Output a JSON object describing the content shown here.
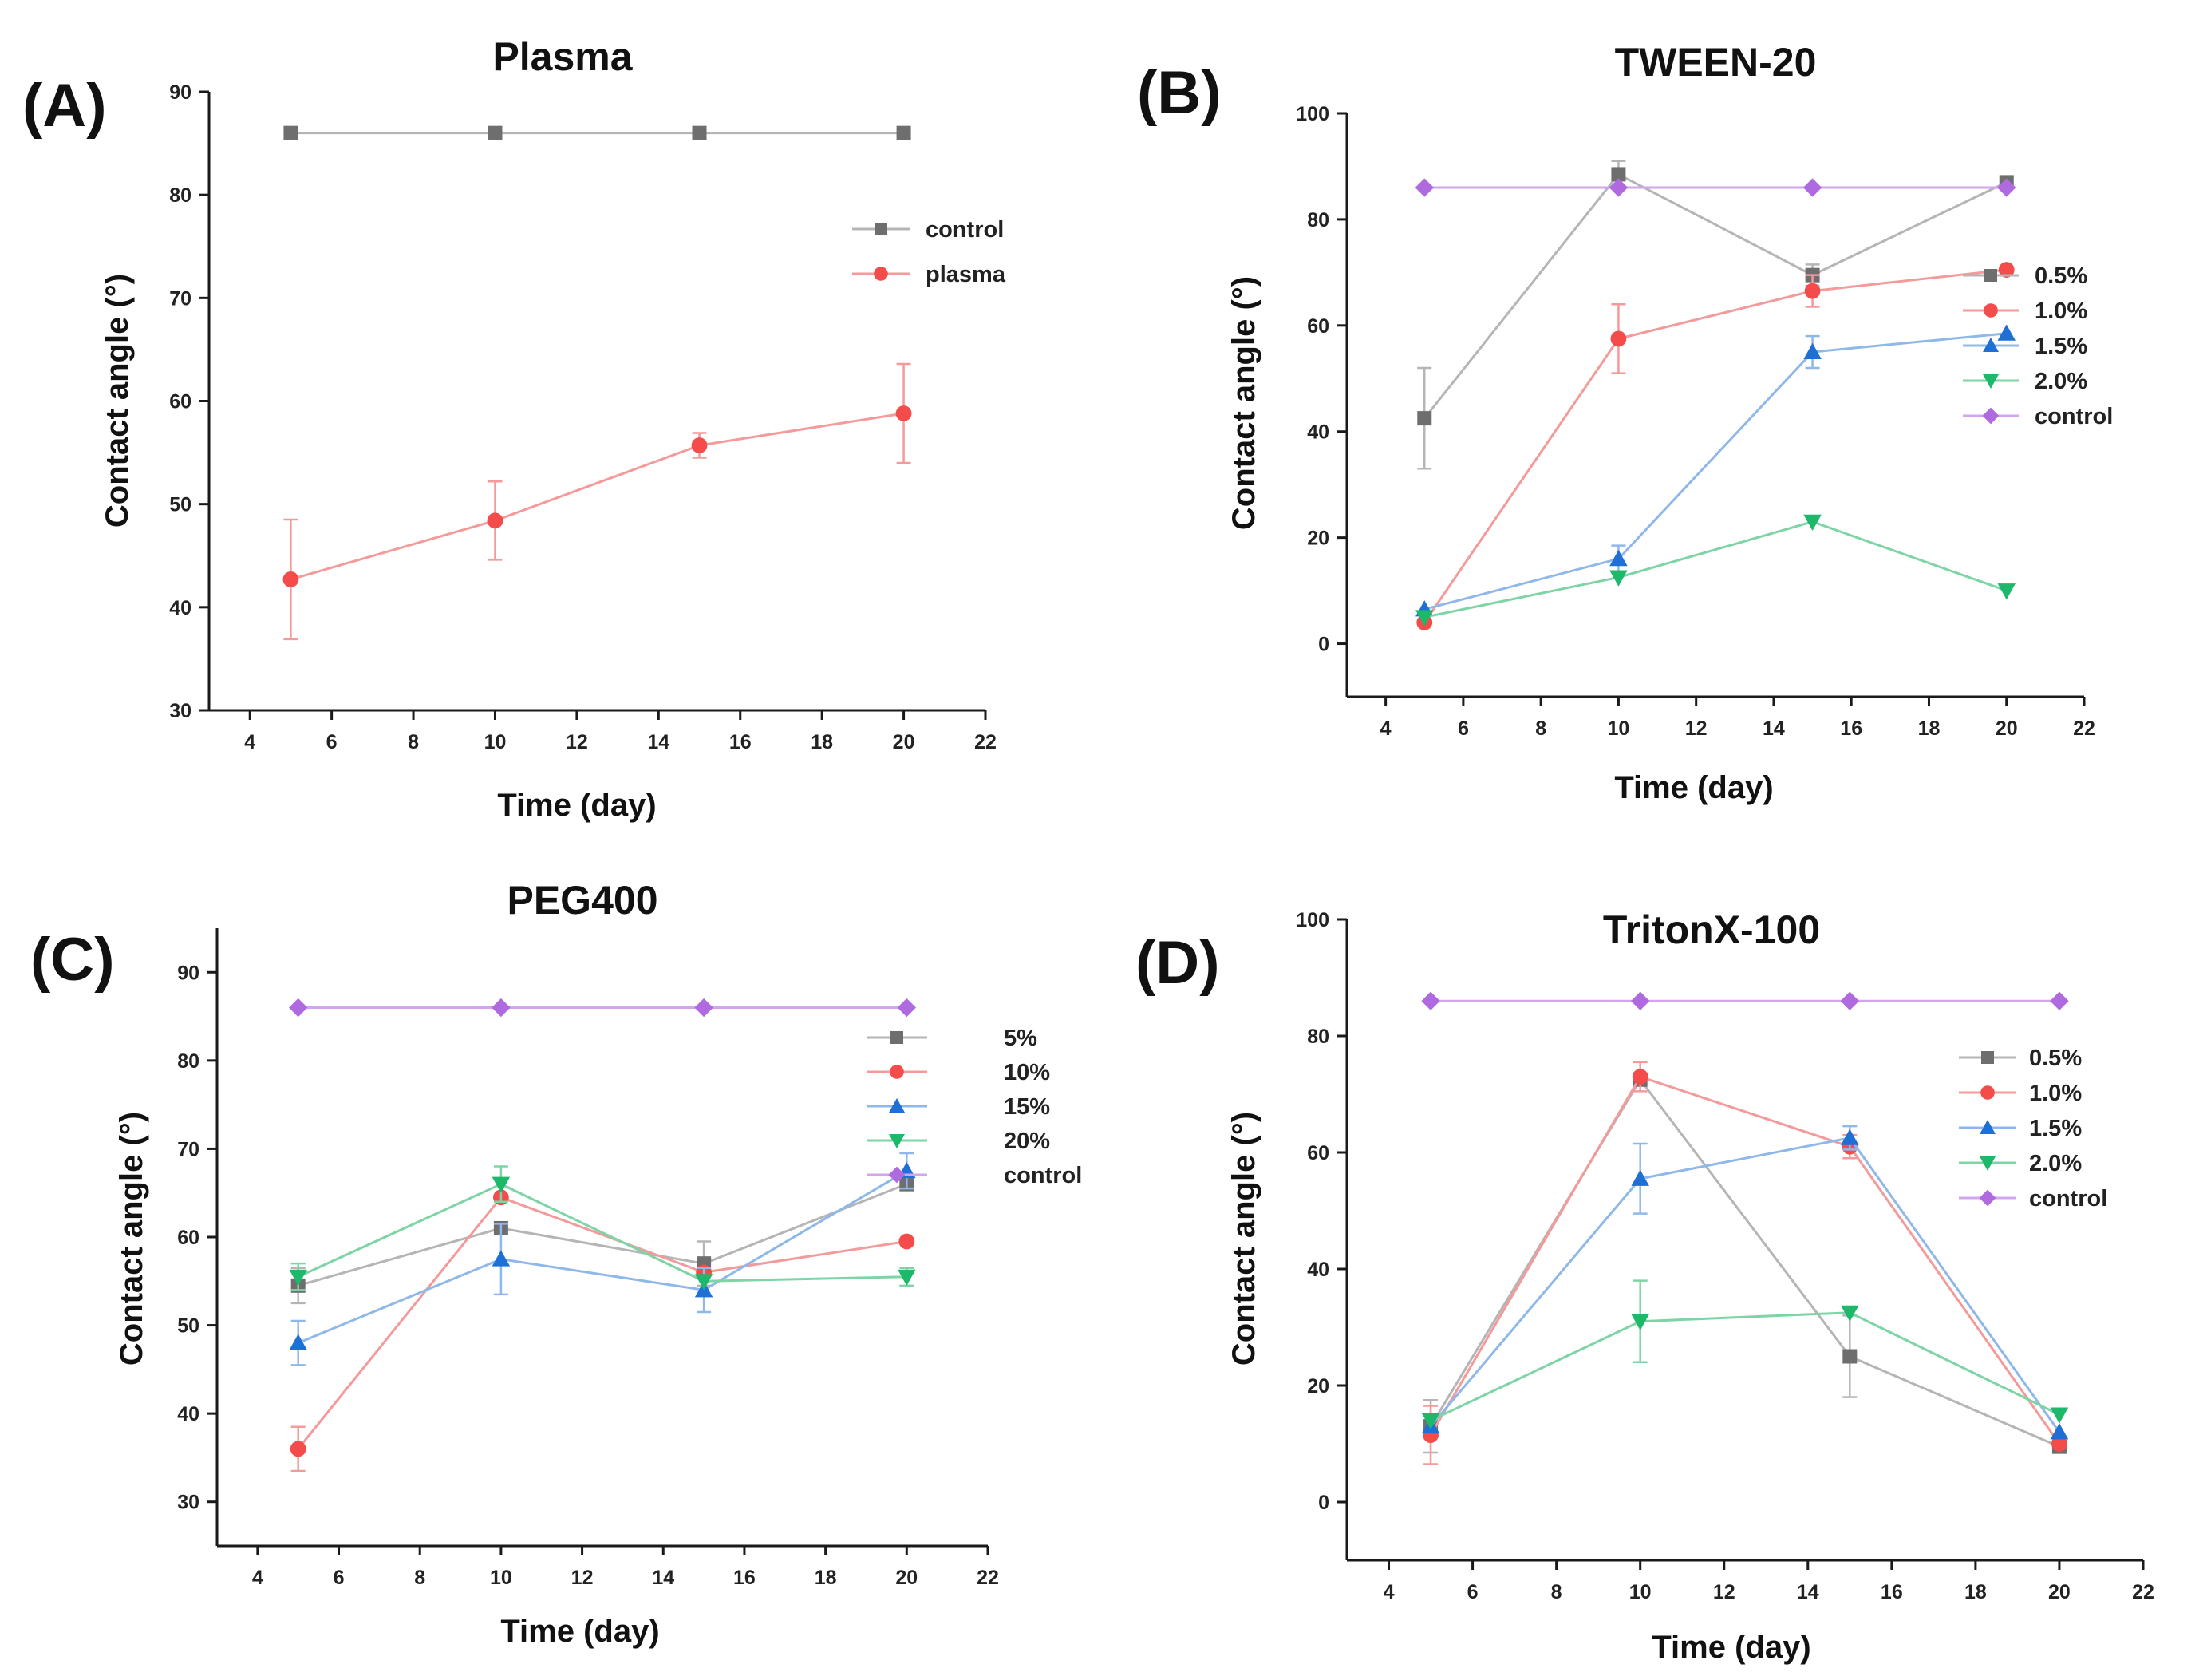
{
  "chart_data": [
    {
      "panel": "(A)",
      "type": "line",
      "title": "Plasma",
      "xlabel": "Time (day)",
      "ylabel": "Contact angle (°)",
      "xlim": [
        3,
        22
      ],
      "ylim": [
        30,
        90
      ],
      "xticks": [
        4,
        6,
        8,
        10,
        12,
        14,
        16,
        18,
        20,
        22
      ],
      "yticks": [
        30,
        40,
        50,
        60,
        70,
        80,
        90
      ],
      "x": [
        5,
        10,
        15,
        20
      ],
      "legend_position": "upper-right",
      "series": [
        {
          "name": "control",
          "marker": "square",
          "color": "#6e6e6e",
          "line_color": "#b5b5b5",
          "values": [
            86,
            86,
            86,
            86
          ],
          "errors": [
            0,
            0,
            0,
            0
          ]
        },
        {
          "name": "plasma",
          "marker": "circle",
          "color": "#f44b4b",
          "line_color": "#f49a9a",
          "values": [
            42.7,
            48.4,
            55.7,
            58.8
          ],
          "errors": [
            5.8,
            3.8,
            1.2,
            4.8
          ]
        }
      ]
    },
    {
      "panel": "(B)",
      "type": "line",
      "title": "TWEEN-20",
      "xlabel": "Time (day)",
      "ylabel": "Contact angle (°)",
      "xlim": [
        3,
        22
      ],
      "ylim": [
        -10,
        100
      ],
      "xticks": [
        4,
        6,
        8,
        10,
        12,
        14,
        16,
        18,
        20,
        22
      ],
      "yticks": [
        0,
        20,
        40,
        60,
        80,
        100
      ],
      "x": [
        5,
        10,
        15,
        20
      ],
      "legend_position": "right",
      "series": [
        {
          "name": "0.5%",
          "marker": "square",
          "color": "#6e6e6e",
          "line_color": "#b5b5b5",
          "values": [
            42.5,
            88.5,
            69.5,
            87
          ],
          "errors": [
            9.5,
            2.5,
            2,
            1
          ]
        },
        {
          "name": "1.0%",
          "marker": "circle",
          "color": "#f44b4b",
          "line_color": "#f49a9a",
          "values": [
            4,
            57.5,
            66.5,
            70.5
          ],
          "errors": [
            0,
            6.5,
            3,
            0
          ]
        },
        {
          "name": "1.5%",
          "marker": "triangle-up",
          "color": "#1e6fd6",
          "line_color": "#8fb8ea",
          "values": [
            6.5,
            16,
            55,
            58.5
          ],
          "errors": [
            0,
            2.5,
            3,
            0
          ]
        },
        {
          "name": "2.0%",
          "marker": "triangle-down",
          "color": "#1db86a",
          "line_color": "#7fd4a6",
          "values": [
            5,
            12.5,
            23,
            10
          ],
          "errors": [
            0,
            0,
            0,
            0
          ]
        },
        {
          "name": "control",
          "marker": "diamond",
          "color": "#b06ae0",
          "line_color": "#d3a5ef",
          "values": [
            86,
            86,
            86,
            86
          ],
          "errors": [
            0,
            0,
            0,
            0
          ]
        }
      ]
    },
    {
      "panel": "(C)",
      "type": "line",
      "title": "PEG400",
      "xlabel": "Time (day)",
      "ylabel": "Contact angle (°)",
      "xlim": [
        3,
        22
      ],
      "ylim": [
        25,
        95
      ],
      "xticks": [
        4,
        6,
        8,
        10,
        12,
        14,
        16,
        18,
        20,
        22
      ],
      "yticks": [
        30,
        40,
        50,
        60,
        70,
        80,
        90
      ],
      "x": [
        5,
        10,
        15,
        20
      ],
      "legend_position": "right",
      "series": [
        {
          "name": "5%",
          "marker": "square",
          "color": "#6e6e6e",
          "line_color": "#b5b5b5",
          "values": [
            54.5,
            61,
            57,
            66
          ],
          "errors": [
            2,
            0,
            2.5,
            0
          ]
        },
        {
          "name": "10%",
          "marker": "circle",
          "color": "#f44b4b",
          "line_color": "#f49a9a",
          "values": [
            36,
            64.5,
            56,
            59.5
          ],
          "errors": [
            2.5,
            0,
            0,
            0
          ]
        },
        {
          "name": "15%",
          "marker": "triangle-up",
          "color": "#1e6fd6",
          "line_color": "#8fb8ea",
          "values": [
            48,
            57.5,
            54,
            67.5
          ],
          "errors": [
            2.5,
            4,
            2.5,
            2
          ]
        },
        {
          "name": "20%",
          "marker": "triangle-down",
          "color": "#1db86a",
          "line_color": "#7fd4a6",
          "values": [
            55.5,
            66,
            55,
            55.5
          ],
          "errors": [
            1.5,
            2,
            0,
            1
          ]
        },
        {
          "name": "control",
          "marker": "diamond",
          "color": "#b06ae0",
          "line_color": "#d3a5ef",
          "values": [
            86,
            86,
            86,
            86
          ],
          "errors": [
            0,
            0,
            0,
            0
          ]
        }
      ]
    },
    {
      "panel": "(D)",
      "type": "line",
      "title": "TritonX-100",
      "xlabel": "Time (day)",
      "ylabel": "Contact angle (°)",
      "xlim": [
        3,
        22
      ],
      "ylim": [
        -10,
        100
      ],
      "xticks": [
        4,
        6,
        8,
        10,
        12,
        14,
        16,
        18,
        20,
        22
      ],
      "yticks": [
        0,
        20,
        40,
        60,
        80,
        100
      ],
      "x": [
        5,
        10,
        15,
        20
      ],
      "legend_position": "right",
      "series": [
        {
          "name": "0.5%",
          "marker": "square",
          "color": "#6e6e6e",
          "line_color": "#b5b5b5",
          "values": [
            13,
            72.5,
            25,
            9.5
          ],
          "errors": [
            4.5,
            0,
            7,
            0
          ]
        },
        {
          "name": "1.0%",
          "marker": "circle",
          "color": "#f44b4b",
          "line_color": "#f49a9a",
          "values": [
            11.5,
            73,
            61,
            10
          ],
          "errors": [
            5,
            2.5,
            2,
            0
          ]
        },
        {
          "name": "1.5%",
          "marker": "triangle-up",
          "color": "#1e6fd6",
          "line_color": "#8fb8ea",
          "values": [
            13,
            55.5,
            62.5,
            12
          ],
          "errors": [
            0,
            6,
            2,
            0
          ]
        },
        {
          "name": "2.0%",
          "marker": "triangle-down",
          "color": "#1db86a",
          "line_color": "#7fd4a6",
          "values": [
            14,
            31,
            32.5,
            15
          ],
          "errors": [
            0,
            7,
            0,
            0
          ]
        },
        {
          "name": "control",
          "marker": "diamond",
          "color": "#b06ae0",
          "line_color": "#d3a5ef",
          "values": [
            86,
            86,
            86,
            86
          ],
          "errors": [
            0,
            0,
            0,
            0
          ]
        }
      ]
    }
  ]
}
